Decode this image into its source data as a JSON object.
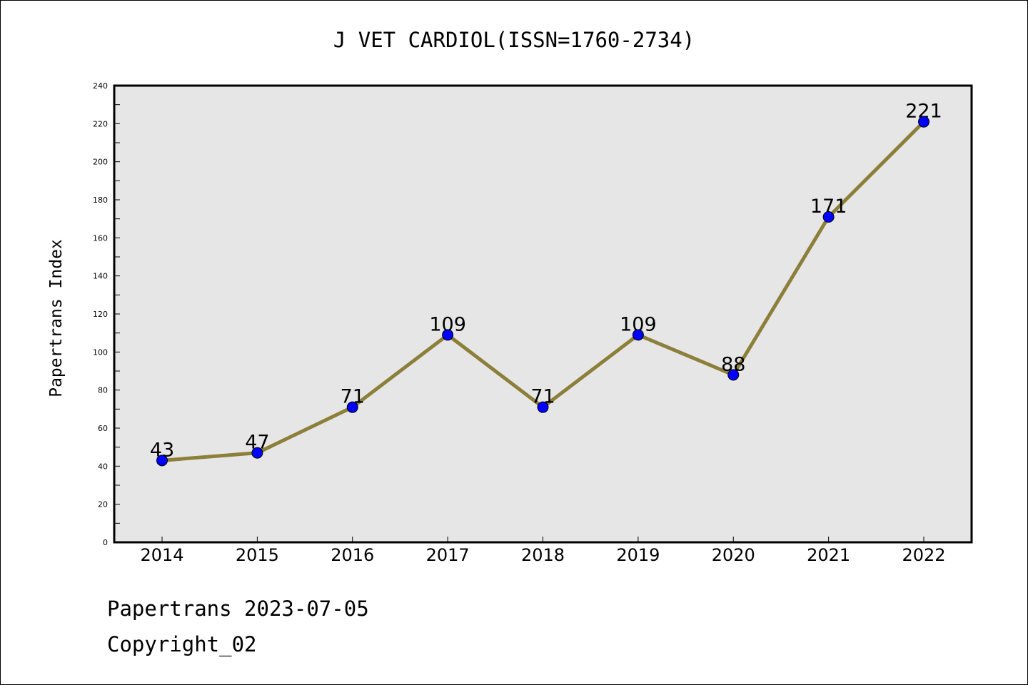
{
  "chart_data": {
    "type": "line",
    "title": "J VET CARDIOL(ISSN=1760-2734)",
    "xlabel": "",
    "ylabel": "Papertrans Index",
    "categories": [
      "2014",
      "2015",
      "2016",
      "2017",
      "2018",
      "2019",
      "2020",
      "2021",
      "2022"
    ],
    "series": [
      {
        "values": [
          43,
          47,
          71,
          109,
          71,
          109,
          88,
          171,
          221
        ]
      }
    ],
    "data_labels": [
      "43",
      "47",
      "71",
      "109",
      "71",
      "109",
      "88",
      "171",
      "221"
    ],
    "ylim": [
      0,
      240
    ],
    "yticks": [
      "0",
      "20",
      "40",
      "60",
      "80",
      "100",
      "120",
      "140",
      "160",
      "180",
      "200",
      "220",
      "240"
    ],
    "grid": false,
    "legend": "none",
    "colors": {
      "line": "#8c7f3a",
      "marker": "#0000ff",
      "plot_bg": "#e6e6e6"
    }
  },
  "footer": {
    "line1": "Papertrans 2023-07-05",
    "line2": "Copyright_02"
  }
}
